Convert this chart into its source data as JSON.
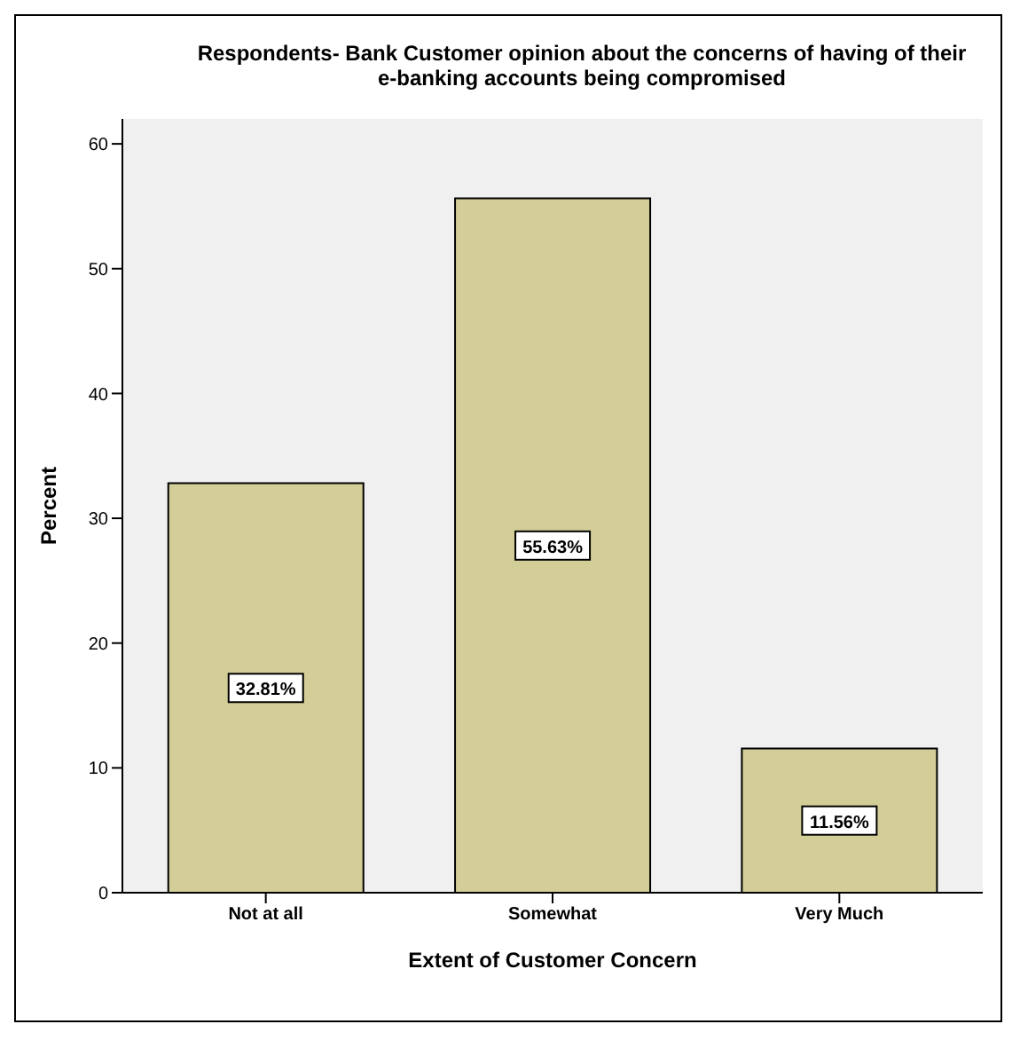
{
  "chart_data": {
    "type": "bar",
    "title": "Respondents- Bank Customer opinion about the concerns of having of their e-banking accounts being compromised",
    "xlabel": "Extent of Customer Concern",
    "ylabel": "Percent",
    "categories": [
      "Not at all",
      "Somewhat",
      "Very Much"
    ],
    "values": [
      32.81,
      55.63,
      11.56
    ],
    "value_labels": [
      "32.81%",
      "55.63%",
      "11.56%"
    ],
    "color": "#d3ce97",
    "ylim": [
      0,
      62
    ],
    "yticks": [
      0,
      10,
      20,
      30,
      40,
      50,
      60
    ],
    "grid": false
  }
}
